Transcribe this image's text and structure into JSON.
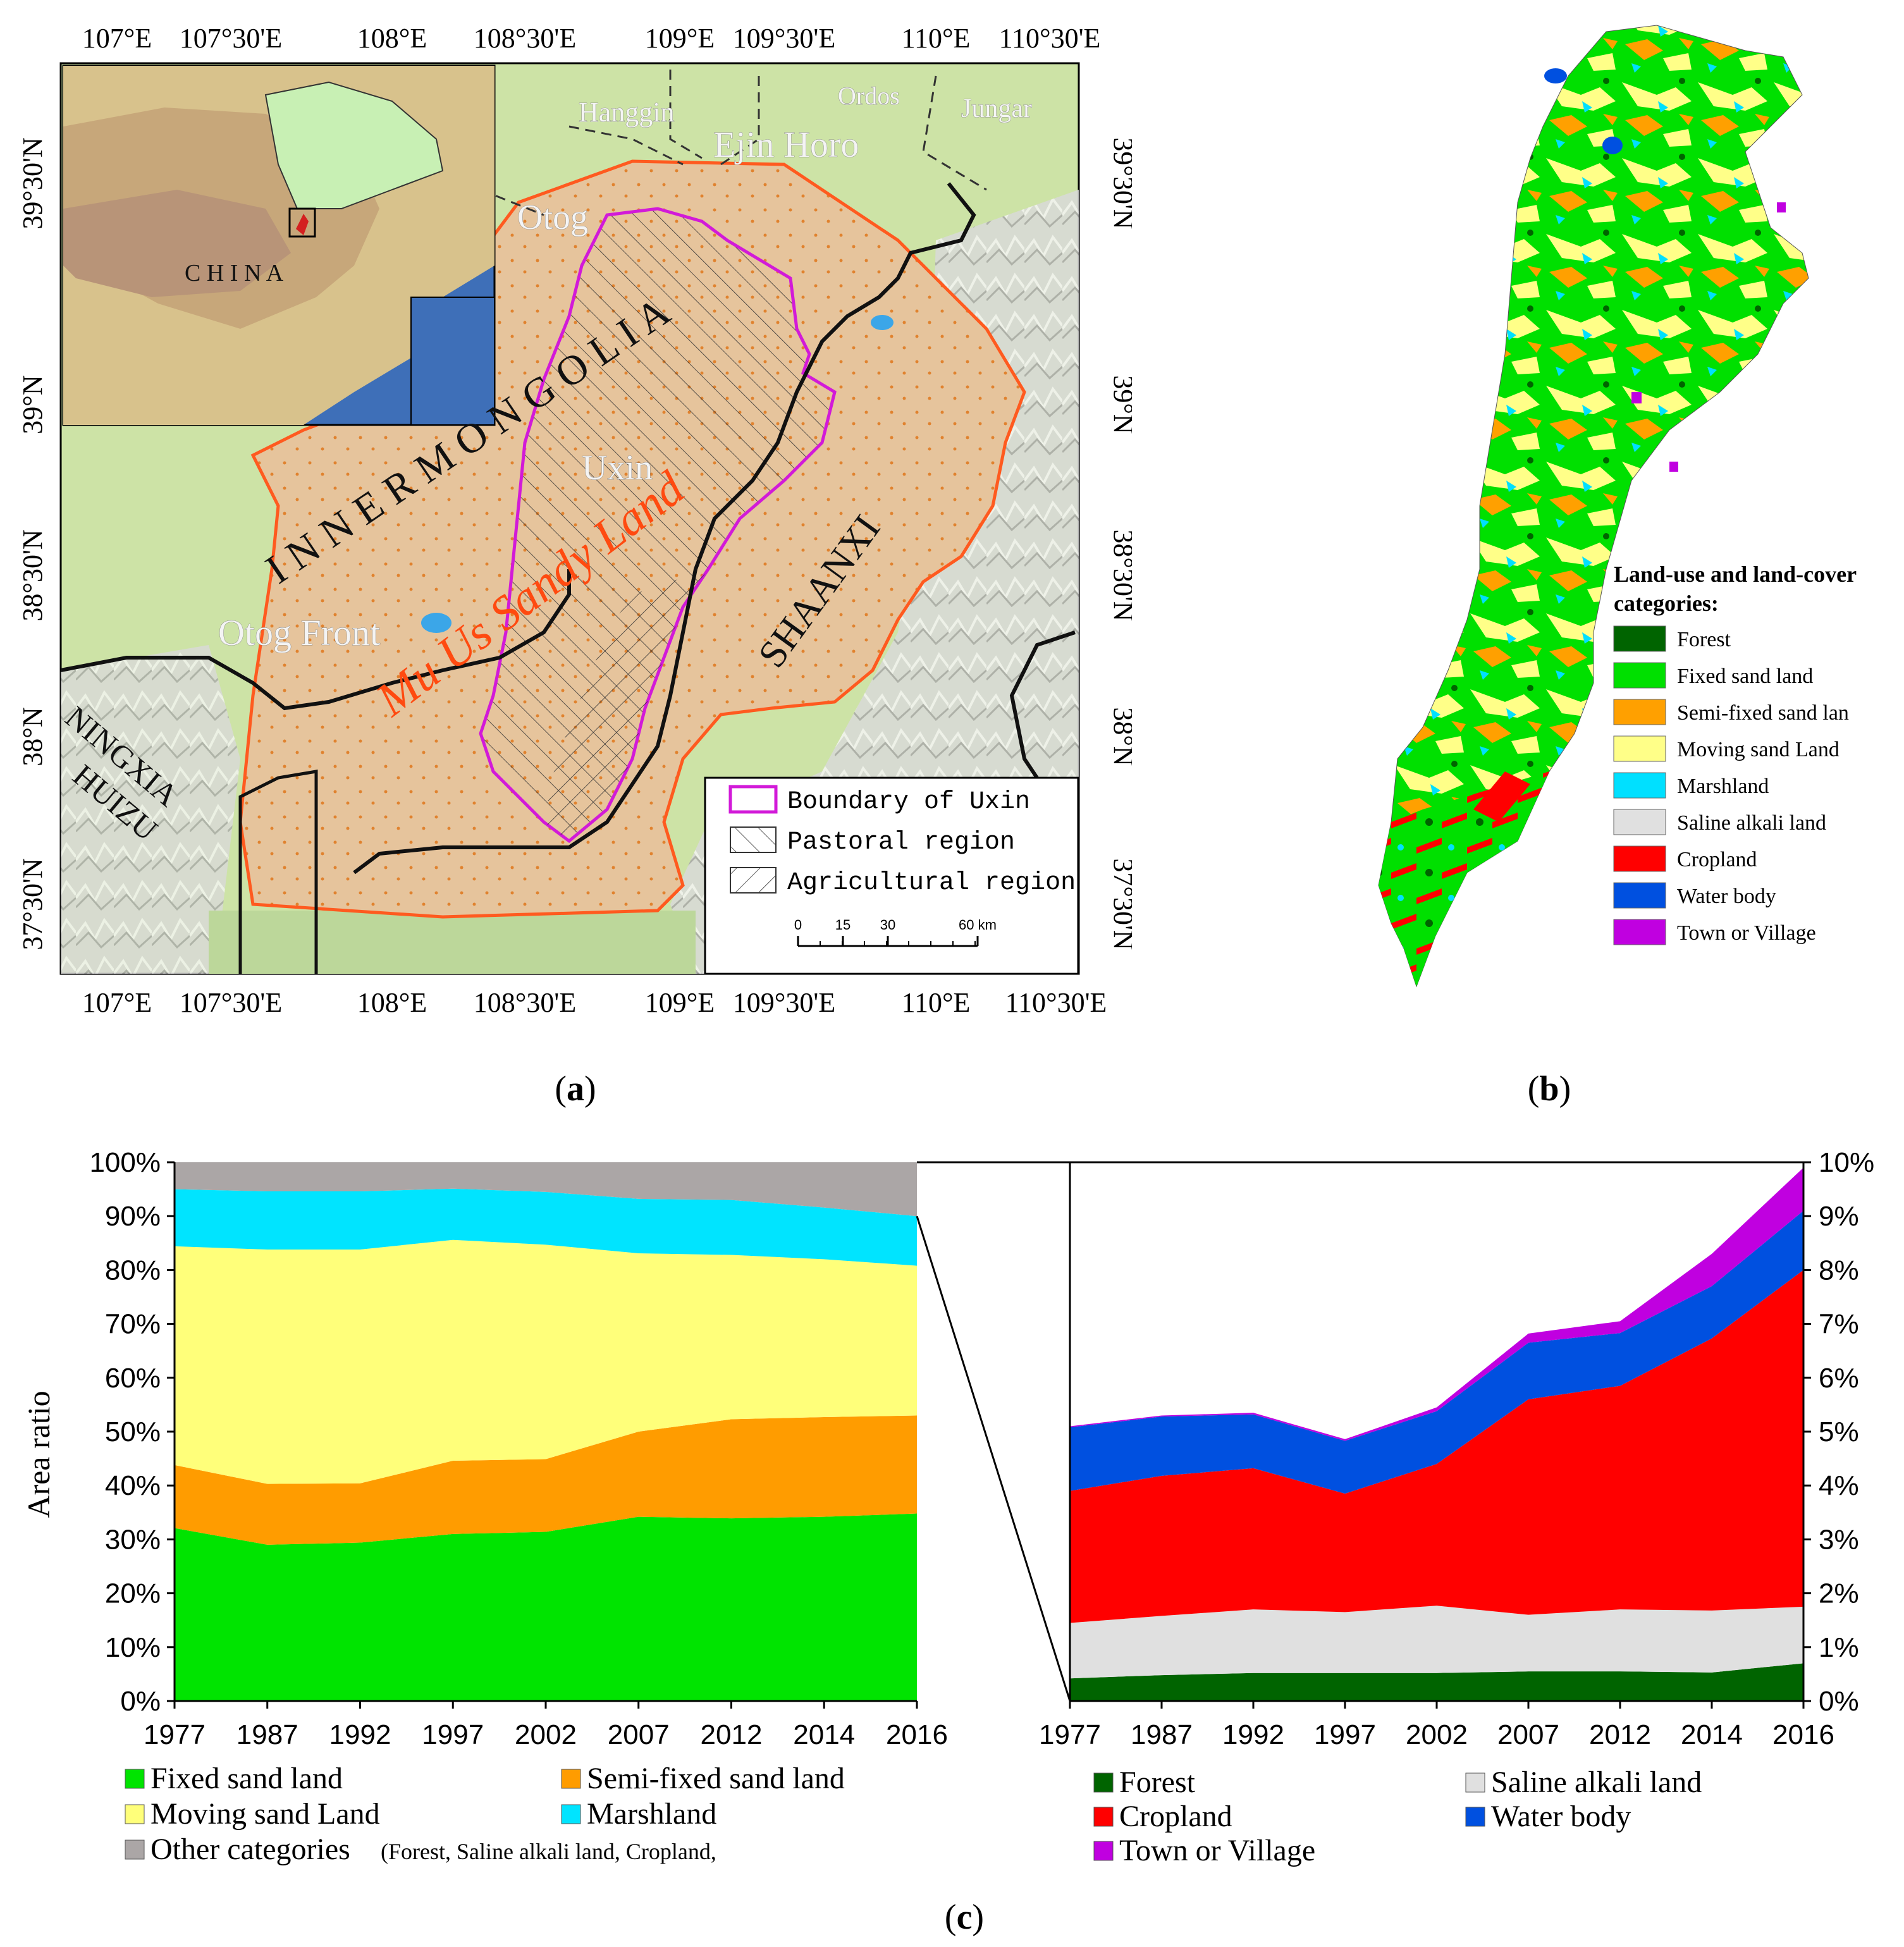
{
  "figure": {
    "caption_a": "(a)",
    "caption_b": "(b)",
    "caption_c": "(c)",
    "caption_letter_a": "a",
    "caption_letter_b": "b",
    "caption_letter_c": "c"
  },
  "map_a": {
    "lon_ticks_top": [
      "107°E",
      "107°30'E",
      "108°E",
      "108°30'E",
      "109°E",
      "109°30'E",
      "110°E",
      "110°30'E"
    ],
    "lon_ticks_bottom": [
      "107°E",
      "107°30'E",
      "108°E",
      "108°30'E",
      "109°E",
      "109°30'E",
      "110°E",
      "110°30'E"
    ],
    "lat_ticks_left": [
      "39°30'N",
      "39°N",
      "38°30'N",
      "38°N",
      "37°30'N"
    ],
    "lat_ticks_right": [
      "39°30'N",
      "39°N",
      "38°30'N",
      "38°N",
      "37°30'N"
    ],
    "places": {
      "hanggin": "Hanggin",
      "ordos": "Ordos",
      "jungar": "Jungar",
      "ejin_horo": "Ejin Horo",
      "otog": "Otog",
      "uxin": "Uxin",
      "otog_front": "Otog Front",
      "inner_mongolia": "I N N E R   M O N G O L I A",
      "mu_us": "Mu Us Sandy Land",
      "shaanxi": "SHAANXI",
      "ningxia": "NINGXIA",
      "huizu": "HUIZU",
      "china": "C H I N A"
    },
    "legend": {
      "boundary": "Boundary of Uxin",
      "pastoral": "Pastoral region",
      "agricultural": "Agricultural region",
      "scale_ticks": [
        "0",
        "15",
        "30",
        "60 km"
      ]
    },
    "colors": {
      "background": "#cfe0a8",
      "sand": "#e9c7a0",
      "study_area_boundary": "#ff5a1f",
      "uxin_boundary": "#d21ad8",
      "province_boundary": "#111111",
      "water": "#3ba6e8",
      "inset_sea": "#3e6fb8",
      "inset_china": "#c8f0b4"
    }
  },
  "map_b": {
    "legend_title_1": "Land-use and land-cover",
    "legend_title_2": "categories:",
    "legend_items": [
      {
        "label": "Forest",
        "color": "#006400"
      },
      {
        "label": "Fixed sand land",
        "color": "#00e000"
      },
      {
        "label": "Semi-fixed sand lan",
        "color": "#ffa000"
      },
      {
        "label": "Moving sand Land",
        "color": "#ffff88"
      },
      {
        "label": "Marshland",
        "color": "#00e0ff"
      },
      {
        "label": "Saline alkali land",
        "color": "#e0e0e0"
      },
      {
        "label": "Cropland",
        "color": "#ff0000"
      },
      {
        "label": "Water body",
        "color": "#0050e0"
      },
      {
        "label": "Town or Village",
        "color": "#c000e0"
      }
    ]
  },
  "chart_data": [
    {
      "type": "area",
      "stacked": true,
      "title": "",
      "xlabel": "",
      "ylabel": "Area ratio",
      "categories": [
        "1977",
        "1987",
        "1992",
        "1997",
        "2002",
        "2007",
        "2012",
        "2014",
        "2016"
      ],
      "ylim": [
        0,
        100
      ],
      "yticks": [
        "0%",
        "10%",
        "20%",
        "30%",
        "40%",
        "50%",
        "60%",
        "70%",
        "80%",
        "90%",
        "100%"
      ],
      "series": [
        {
          "name": "Fixed sand land",
          "color": "#00e400",
          "values": [
            32.1,
            29.0,
            29.4,
            31.0,
            31.4,
            34.2,
            33.9,
            34.2,
            34.8
          ]
        },
        {
          "name": "Semi-fixed sand land",
          "color": "#ff9c00",
          "values": [
            11.7,
            11.3,
            11.0,
            13.6,
            13.5,
            15.8,
            18.4,
            18.5,
            18.2
          ]
        },
        {
          "name": "Moving sand Land",
          "color": "#ffff7a",
          "values": [
            40.6,
            43.5,
            43.4,
            41.0,
            39.8,
            33.1,
            30.5,
            29.3,
            27.8
          ]
        },
        {
          "name": "Marshland",
          "color": "#00e4ff",
          "values": [
            10.6,
            10.8,
            10.8,
            9.5,
            9.8,
            10.1,
            10.2,
            9.6,
            9.2
          ]
        },
        {
          "name": "Other categories",
          "color": "#aba6a6",
          "values": [
            5.0,
            5.4,
            5.4,
            4.9,
            5.5,
            6.8,
            7.0,
            8.4,
            10.0
          ]
        }
      ],
      "legend": [
        {
          "label": "Fixed sand land",
          "color": "#00e400"
        },
        {
          "label": "Semi-fixed sand land",
          "color": "#ff9c00"
        },
        {
          "label": "Moving sand Land",
          "color": "#ffff7a"
        },
        {
          "label": "Marshland",
          "color": "#00e4ff"
        },
        {
          "label": "Other categories",
          "color": "#aba6a6",
          "note": "(Forest, Saline alkali land, Cropland,"
        }
      ]
    },
    {
      "type": "area",
      "stacked": true,
      "title": "",
      "xlabel": "",
      "ylabel": "",
      "categories": [
        "1977",
        "1987",
        "1992",
        "1997",
        "2002",
        "2007",
        "2012",
        "2014",
        "2016"
      ],
      "ylim": [
        0,
        10
      ],
      "yticks": [
        "0%",
        "1%",
        "2%",
        "3%",
        "4%",
        "5%",
        "6%",
        "7%",
        "8%",
        "9%",
        "10%"
      ],
      "series": [
        {
          "name": "Forest",
          "color": "#006400",
          "values": [
            0.42,
            0.48,
            0.52,
            0.52,
            0.52,
            0.55,
            0.55,
            0.53,
            0.7
          ]
        },
        {
          "name": "Saline alkali land",
          "color": "#e0e0e0",
          "values": [
            1.03,
            1.1,
            1.18,
            1.13,
            1.25,
            1.05,
            1.15,
            1.15,
            1.05
          ]
        },
        {
          "name": "Cropland",
          "color": "#ff0000",
          "values": [
            2.45,
            2.6,
            2.62,
            2.2,
            2.63,
            4.0,
            4.15,
            5.05,
            6.25
          ]
        },
        {
          "name": "Water body",
          "color": "#0050e0",
          "values": [
            1.18,
            1.1,
            1.0,
            0.98,
            0.98,
            1.05,
            0.98,
            0.97,
            1.1
          ]
        },
        {
          "name": "Town or Village",
          "color": "#c000e0",
          "values": [
            0.02,
            0.02,
            0.03,
            0.03,
            0.07,
            0.17,
            0.22,
            0.6,
            0.8
          ]
        }
      ],
      "legend": [
        {
          "label": "Forest",
          "color": "#006400"
        },
        {
          "label": "Saline alkali land",
          "color": "#e0e0e0"
        },
        {
          "label": "Cropland",
          "color": "#ff0000"
        },
        {
          "label": "Water body",
          "color": "#0050e0"
        },
        {
          "label": "Town or Village",
          "color": "#c000e0"
        }
      ]
    }
  ]
}
